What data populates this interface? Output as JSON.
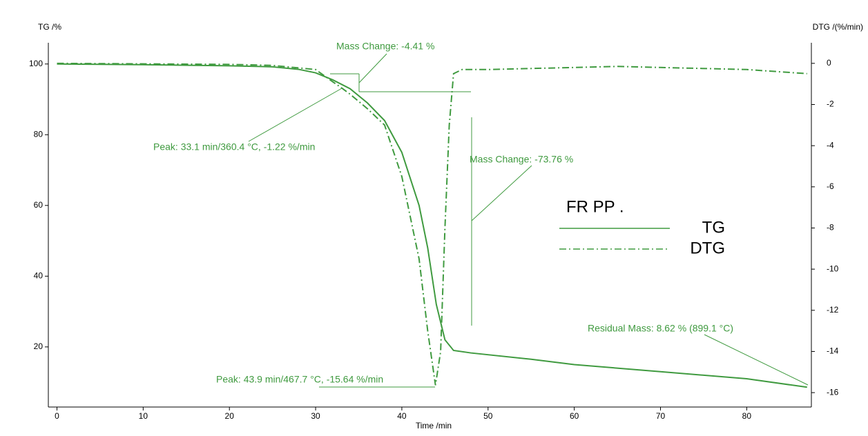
{
  "chart_data": {
    "type": "line",
    "y_label": "TG /%",
    "y2_label": "DTG /(%/min)",
    "x_label": "Time /min",
    "xlim": [
      -1,
      87.5
    ],
    "xticks": [
      0,
      10,
      20,
      30,
      40,
      50,
      60,
      70,
      80
    ],
    "ylim": [
      3,
      106
    ],
    "yticks": [
      20,
      40,
      60,
      80,
      100
    ],
    "y2lim": [
      -16.7,
      1
    ],
    "y2ticks": [
      0,
      -2,
      -4,
      -6,
      -8,
      -10,
      -12,
      -14,
      -16
    ],
    "series": [
      {
        "name": "TG",
        "color": "#3f9a3f",
        "dash": "solid",
        "x": [
          0,
          10,
          20,
          25,
          28,
          30,
          32,
          34,
          36,
          38,
          40,
          42,
          43,
          44,
          45,
          46,
          48,
          55,
          60,
          70,
          80,
          87
        ],
        "values": [
          100,
          99.8,
          99.5,
          99.2,
          98.5,
          97.5,
          95.5,
          93,
          89,
          84,
          75,
          60,
          48,
          32,
          22,
          19,
          18.3,
          16.5,
          15,
          13,
          11,
          8.6
        ]
      },
      {
        "name": "DTG",
        "color": "#3f9a3f",
        "dash": "dashdot",
        "axis": "y2",
        "x": [
          0,
          20,
          25,
          30,
          32,
          33.1,
          34,
          36,
          38,
          40,
          42,
          43,
          43.9,
          44.5,
          45,
          45.5,
          46,
          47,
          50,
          60,
          65,
          70,
          80,
          87
        ],
        "values": [
          0,
          -0.05,
          -0.1,
          -0.3,
          -0.9,
          -1.22,
          -1.5,
          -2.2,
          -3,
          -5.5,
          -9.5,
          -13,
          -15.64,
          -14,
          -8,
          -3,
          -0.5,
          -0.3,
          -0.3,
          -0.2,
          -0.15,
          -0.2,
          -0.3,
          -0.5
        ]
      }
    ],
    "legend_title": "FR PP .",
    "annotations": [
      "Mass Change: -4.41 %",
      "Peak: 33.1 min/360.4 °C, -1.22 %/min",
      "Mass Change: -73.76 %",
      "Peak: 43.9 min/467.7 °C, -15.64 %/min",
      "Residual Mass: 8.62 % (899.1 °C)"
    ]
  }
}
